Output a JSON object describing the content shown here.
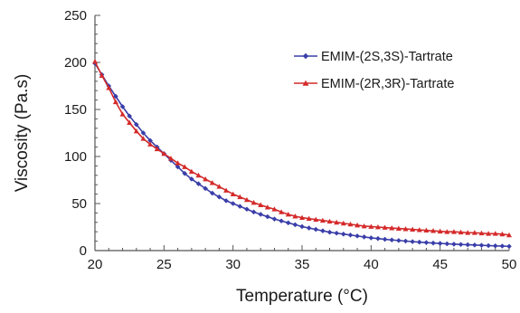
{
  "chart_data": {
    "type": "line",
    "title": "",
    "xlabel": "Temperature (°C)",
    "ylabel": "Viscosity (Pa.s)",
    "xlim": [
      20,
      50
    ],
    "ylim": [
      0,
      250
    ],
    "xticks": [
      "20",
      "25",
      "30",
      "35",
      "40",
      "45",
      "50"
    ],
    "yticks": [
      "0",
      "50",
      "100",
      "150",
      "200",
      "250"
    ],
    "grid": false,
    "legend_position": "top-right",
    "series": [
      {
        "name": "EMIM-(2S,3S)-Tartrate",
        "color": "#3a3ea8",
        "marker": "diamond",
        "x": [
          20,
          20.5,
          21,
          21.5,
          22,
          22.5,
          23,
          23.5,
          24,
          24.5,
          25,
          25.5,
          26,
          26.5,
          27,
          27.5,
          28,
          28.5,
          29,
          29.5,
          30,
          30.5,
          31,
          31.5,
          32,
          32.5,
          33,
          33.5,
          34,
          34.5,
          35,
          35.5,
          36,
          36.5,
          37,
          37.5,
          38,
          38.5,
          39,
          39.5,
          40,
          40.5,
          41,
          41.5,
          42,
          42.5,
          43,
          43.5,
          44,
          44.5,
          45,
          45.5,
          46,
          46.5,
          47,
          47.5,
          48,
          48.5,
          49,
          49.5,
          50
        ],
        "y": [
          199,
          187,
          175,
          164,
          153,
          143,
          134,
          125,
          117,
          110,
          103,
          96,
          89,
          82,
          76,
          71,
          66,
          61,
          57,
          53,
          50,
          47,
          44,
          41,
          38.5,
          36,
          33.5,
          31.5,
          29.5,
          27.5,
          25.5,
          24,
          22.5,
          21,
          19.5,
          18.5,
          17.5,
          16.5,
          15.5,
          14.5,
          13.5,
          12.8,
          12,
          11.3,
          10.7,
          10.1,
          9.5,
          9,
          8.5,
          8,
          7.6,
          7.2,
          6.8,
          6.5,
          6.2,
          5.9,
          5.6,
          5.3,
          5,
          4.8,
          4.5
        ]
      },
      {
        "name": "EMIM-(2R,3R)-Tartrate",
        "color": "#d42a2a",
        "marker": "triangle",
        "x": [
          20,
          20.5,
          21,
          21.5,
          22,
          22.5,
          23,
          23.5,
          24,
          24.5,
          25,
          25.5,
          26,
          26.5,
          27,
          27.5,
          28,
          28.5,
          29,
          29.5,
          30,
          30.5,
          31,
          31.5,
          32,
          32.5,
          33,
          33.5,
          34,
          34.5,
          35,
          35.5,
          36,
          36.5,
          37,
          37.5,
          38,
          38.5,
          39,
          39.5,
          40,
          40.5,
          41,
          41.5,
          42,
          42.5,
          43,
          43.5,
          44,
          44.5,
          45,
          45.5,
          46,
          46.5,
          47,
          47.5,
          48,
          48.5,
          49,
          49.5,
          50
        ],
        "y": [
          201,
          186,
          173,
          158,
          145,
          136,
          127,
          119,
          113,
          108,
          103,
          98,
          93,
          89,
          84,
          80,
          76,
          72,
          68,
          64,
          60,
          57,
          54,
          51,
          48.5,
          46,
          44,
          41,
          38.5,
          36.5,
          35,
          34,
          33,
          32,
          31,
          30,
          29,
          28,
          27,
          26,
          25.5,
          25,
          24.5,
          24,
          23.5,
          23,
          22.5,
          22,
          21.5,
          21,
          20.5,
          20,
          20,
          19.5,
          19,
          19,
          18.5,
          18,
          18,
          17.5,
          16.5
        ]
      }
    ]
  }
}
